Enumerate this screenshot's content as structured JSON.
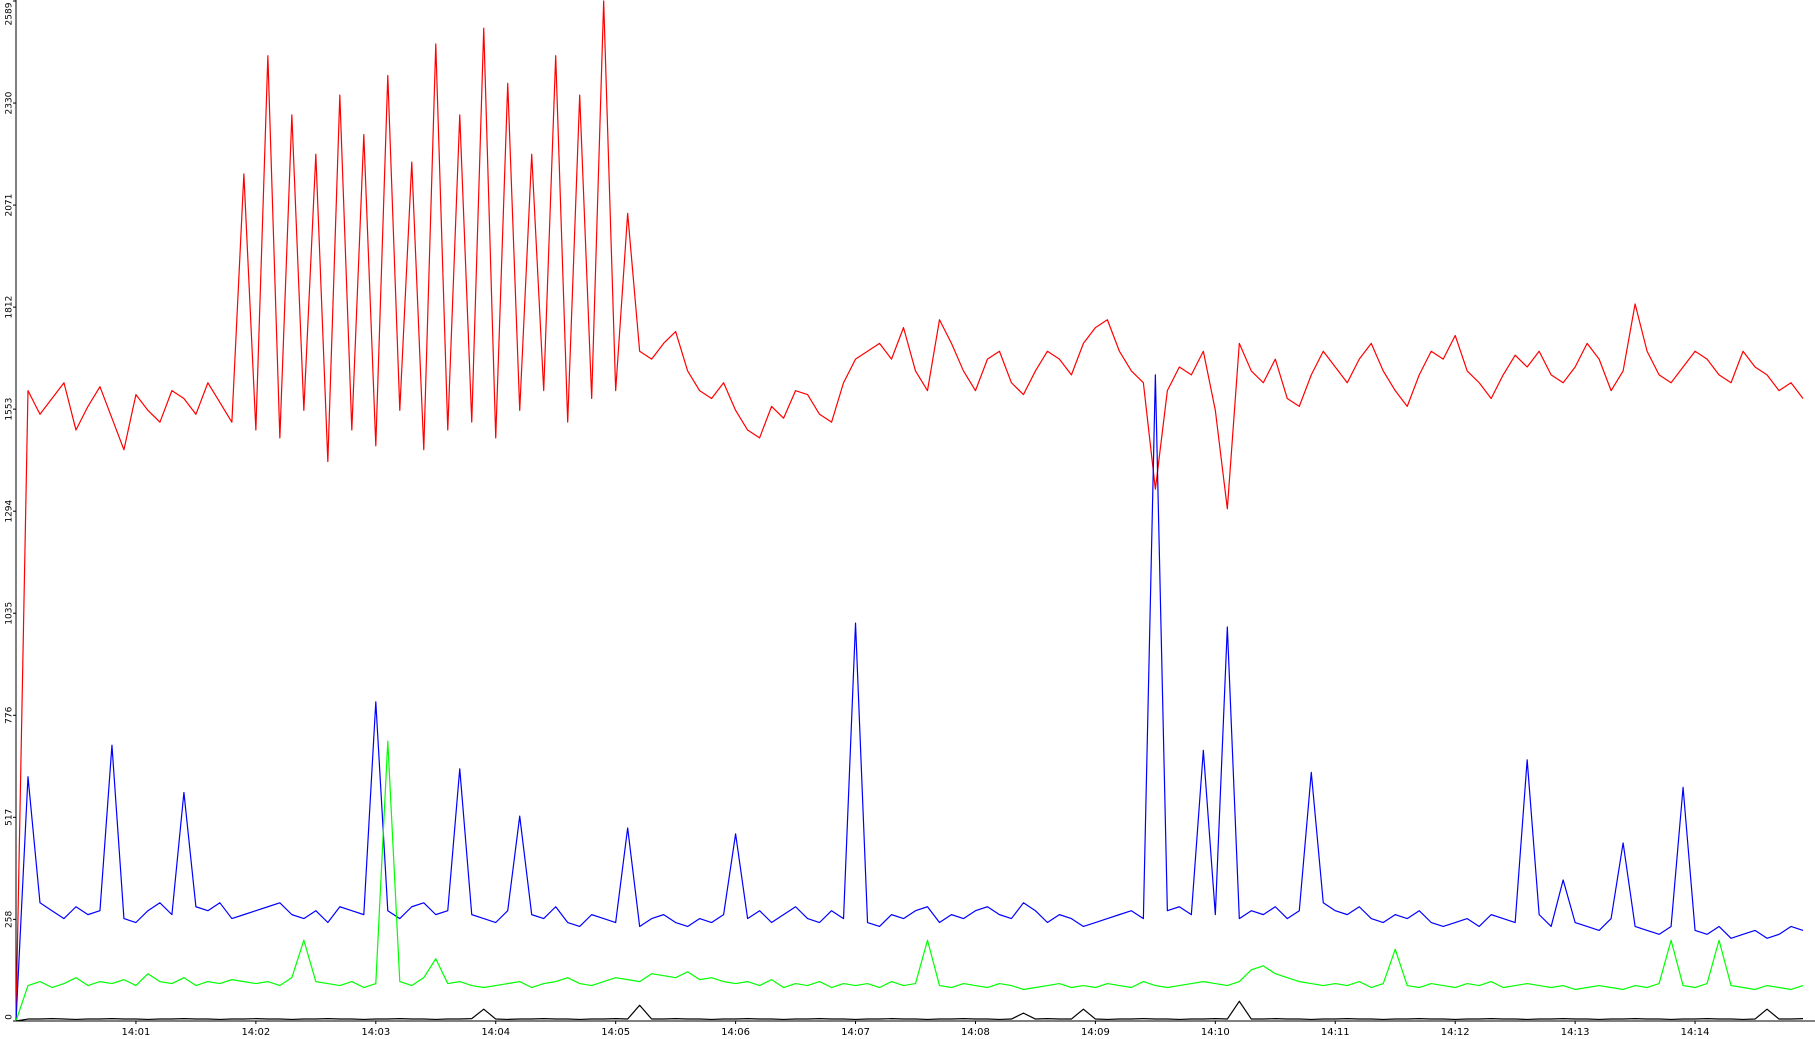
{
  "chart_data": {
    "type": "line",
    "categories": [
      null,
      null,
      null,
      null,
      null,
      null,
      null,
      null,
      null,
      null,
      "14:01",
      null,
      null,
      null,
      null,
      null,
      null,
      null,
      null,
      null,
      "14:02",
      null,
      null,
      null,
      null,
      null,
      null,
      null,
      null,
      null,
      "14:03",
      null,
      null,
      null,
      null,
      null,
      null,
      null,
      null,
      null,
      "14:04",
      null,
      null,
      null,
      null,
      null,
      null,
      null,
      null,
      null,
      "14:05",
      null,
      null,
      null,
      null,
      null,
      null,
      null,
      null,
      null,
      "14:06",
      null,
      null,
      null,
      null,
      null,
      null,
      null,
      null,
      null,
      "14:07",
      null,
      null,
      null,
      null,
      null,
      null,
      null,
      null,
      null,
      "14:08",
      null,
      null,
      null,
      null,
      null,
      null,
      null,
      null,
      null,
      "14:09",
      null,
      null,
      null,
      null,
      null,
      null,
      null,
      null,
      null,
      "14:10",
      null,
      null,
      null,
      null,
      null,
      null,
      null,
      null,
      null,
      "14:11",
      null,
      null,
      null,
      null,
      null,
      null,
      null,
      null,
      null,
      "14:12",
      null,
      null,
      null,
      null,
      null,
      null,
      null,
      null,
      null,
      "14:13",
      null,
      null,
      null,
      null,
      null,
      null,
      null,
      null,
      null,
      "14:14",
      null,
      null,
      null,
      null,
      null,
      null,
      null,
      null,
      null
    ],
    "series": [
      {
        "color": "#ff0000",
        "values": [
          0,
          1600,
          1540,
          1580,
          1620,
          1500,
          1560,
          1610,
          1530,
          1450,
          1590,
          1550,
          1520,
          1600,
          1580,
          1540,
          1620,
          1570,
          1520,
          2150,
          1500,
          2450,
          1480,
          2300,
          1550,
          2200,
          1420,
          2350,
          1500,
          2250,
          1460,
          2400,
          1550,
          2180,
          1450,
          2480,
          1500,
          2300,
          1520,
          2520,
          1480,
          2380,
          1550,
          2200,
          1600,
          2450,
          1520,
          2350,
          1580,
          2589,
          1600,
          2050,
          1700,
          1680,
          1720,
          1750,
          1650,
          1600,
          1580,
          1620,
          1550,
          1500,
          1480,
          1560,
          1530,
          1600,
          1590,
          1540,
          1520,
          1620,
          1680,
          1700,
          1720,
          1680,
          1760,
          1650,
          1600,
          1780,
          1720,
          1650,
          1600,
          1680,
          1700,
          1620,
          1590,
          1650,
          1700,
          1680,
          1640,
          1720,
          1760,
          1780,
          1700,
          1650,
          1620,
          1350,
          1600,
          1660,
          1640,
          1700,
          1550,
          1300,
          1720,
          1650,
          1620,
          1680,
          1580,
          1560,
          1640,
          1700,
          1660,
          1620,
          1680,
          1720,
          1650,
          1600,
          1560,
          1640,
          1700,
          1680,
          1740,
          1650,
          1620,
          1580,
          1640,
          1690,
          1660,
          1700,
          1640,
          1620,
          1660,
          1720,
          1680,
          1600,
          1650,
          1820,
          1700,
          1640,
          1620,
          1660,
          1700,
          1680,
          1640,
          1620,
          1700,
          1660,
          1640,
          1600,
          1620,
          1580
        ]
      },
      {
        "color": "#0000ff",
        "values": [
          0,
          620,
          300,
          280,
          260,
          290,
          270,
          280,
          700,
          260,
          250,
          280,
          300,
          270,
          580,
          290,
          280,
          300,
          260,
          270,
          280,
          290,
          300,
          270,
          260,
          280,
          250,
          290,
          280,
          270,
          810,
          280,
          260,
          290,
          300,
          270,
          280,
          640,
          270,
          260,
          250,
          280,
          520,
          270,
          260,
          290,
          250,
          240,
          270,
          260,
          250,
          490,
          240,
          260,
          270,
          250,
          240,
          260,
          250,
          270,
          475,
          260,
          280,
          250,
          270,
          290,
          260,
          250,
          280,
          260,
          1010,
          250,
          240,
          270,
          260,
          280,
          290,
          250,
          270,
          260,
          280,
          290,
          270,
          260,
          300,
          280,
          250,
          270,
          260,
          240,
          250,
          260,
          270,
          280,
          260,
          1640,
          280,
          290,
          270,
          687,
          270,
          1000,
          260,
          280,
          270,
          290,
          260,
          280,
          631,
          300,
          280,
          270,
          290,
          260,
          250,
          270,
          260,
          280,
          250,
          240,
          250,
          260,
          240,
          270,
          260,
          250,
          663,
          270,
          240,
          358,
          250,
          240,
          230,
          260,
          452,
          240,
          230,
          220,
          240,
          593,
          230,
          220,
          240,
          210,
          220,
          230,
          210,
          220,
          240,
          230
        ]
      },
      {
        "color": "#00ff00",
        "values": [
          0,
          90,
          100,
          85,
          95,
          110,
          90,
          100,
          95,
          105,
          90,
          120,
          100,
          95,
          110,
          90,
          100,
          95,
          105,
          100,
          95,
          100,
          90,
          110,
          205,
          100,
          95,
          90,
          100,
          85,
          95,
          710,
          100,
          90,
          110,
          158,
          95,
          100,
          90,
          85,
          90,
          95,
          100,
          85,
          95,
          100,
          110,
          95,
          90,
          100,
          110,
          105,
          100,
          120,
          115,
          110,
          125,
          105,
          110,
          100,
          95,
          100,
          90,
          105,
          85,
          95,
          90,
          100,
          85,
          95,
          90,
          95,
          85,
          100,
          90,
          95,
          205,
          90,
          85,
          95,
          90,
          85,
          95,
          90,
          80,
          85,
          90,
          95,
          85,
          90,
          85,
          95,
          90,
          85,
          100,
          90,
          85,
          90,
          95,
          100,
          95,
          90,
          100,
          130,
          140,
          120,
          110,
          100,
          95,
          90,
          95,
          90,
          100,
          85,
          95,
          182,
          90,
          85,
          95,
          90,
          85,
          95,
          90,
          100,
          85,
          90,
          95,
          90,
          85,
          90,
          80,
          85,
          90,
          85,
          80,
          90,
          85,
          95,
          205,
          90,
          85,
          95,
          205,
          90,
          85,
          80,
          90,
          85,
          80,
          90
        ]
      },
      {
        "color": "#000000",
        "values": [
          0,
          5,
          5,
          6,
          5,
          4,
          5,
          5,
          6,
          5,
          5,
          4,
          5,
          5,
          6,
          5,
          5,
          4,
          5,
          5,
          6,
          5,
          5,
          4,
          5,
          5,
          6,
          5,
          5,
          4,
          5,
          5,
          6,
          5,
          5,
          4,
          5,
          5,
          6,
          30,
          5,
          4,
          5,
          5,
          6,
          5,
          5,
          4,
          5,
          5,
          6,
          5,
          40,
          5,
          5,
          6,
          5,
          5,
          4,
          5,
          5,
          6,
          5,
          5,
          4,
          5,
          5,
          6,
          5,
          5,
          4,
          5,
          5,
          6,
          5,
          5,
          4,
          5,
          5,
          6,
          5,
          5,
          4,
          5,
          20,
          5,
          6,
          5,
          5,
          30,
          5,
          4,
          5,
          5,
          6,
          5,
          5,
          4,
          5,
          5,
          6,
          5,
          50,
          5,
          5,
          6,
          5,
          5,
          4,
          5,
          5,
          6,
          5,
          5,
          4,
          5,
          5,
          6,
          5,
          5,
          4,
          5,
          5,
          6,
          5,
          5,
          4,
          5,
          5,
          6,
          5,
          5,
          4,
          5,
          5,
          6,
          5,
          5,
          4,
          5,
          5,
          6,
          5,
          5,
          4,
          5,
          30,
          5,
          5,
          6
        ]
      }
    ],
    "ylim": [
      0,
      2589
    ],
    "yticks": [
      0,
      258,
      517,
      776,
      1035,
      1294,
      1553,
      1812,
      2071,
      2330,
      2589
    ]
  }
}
